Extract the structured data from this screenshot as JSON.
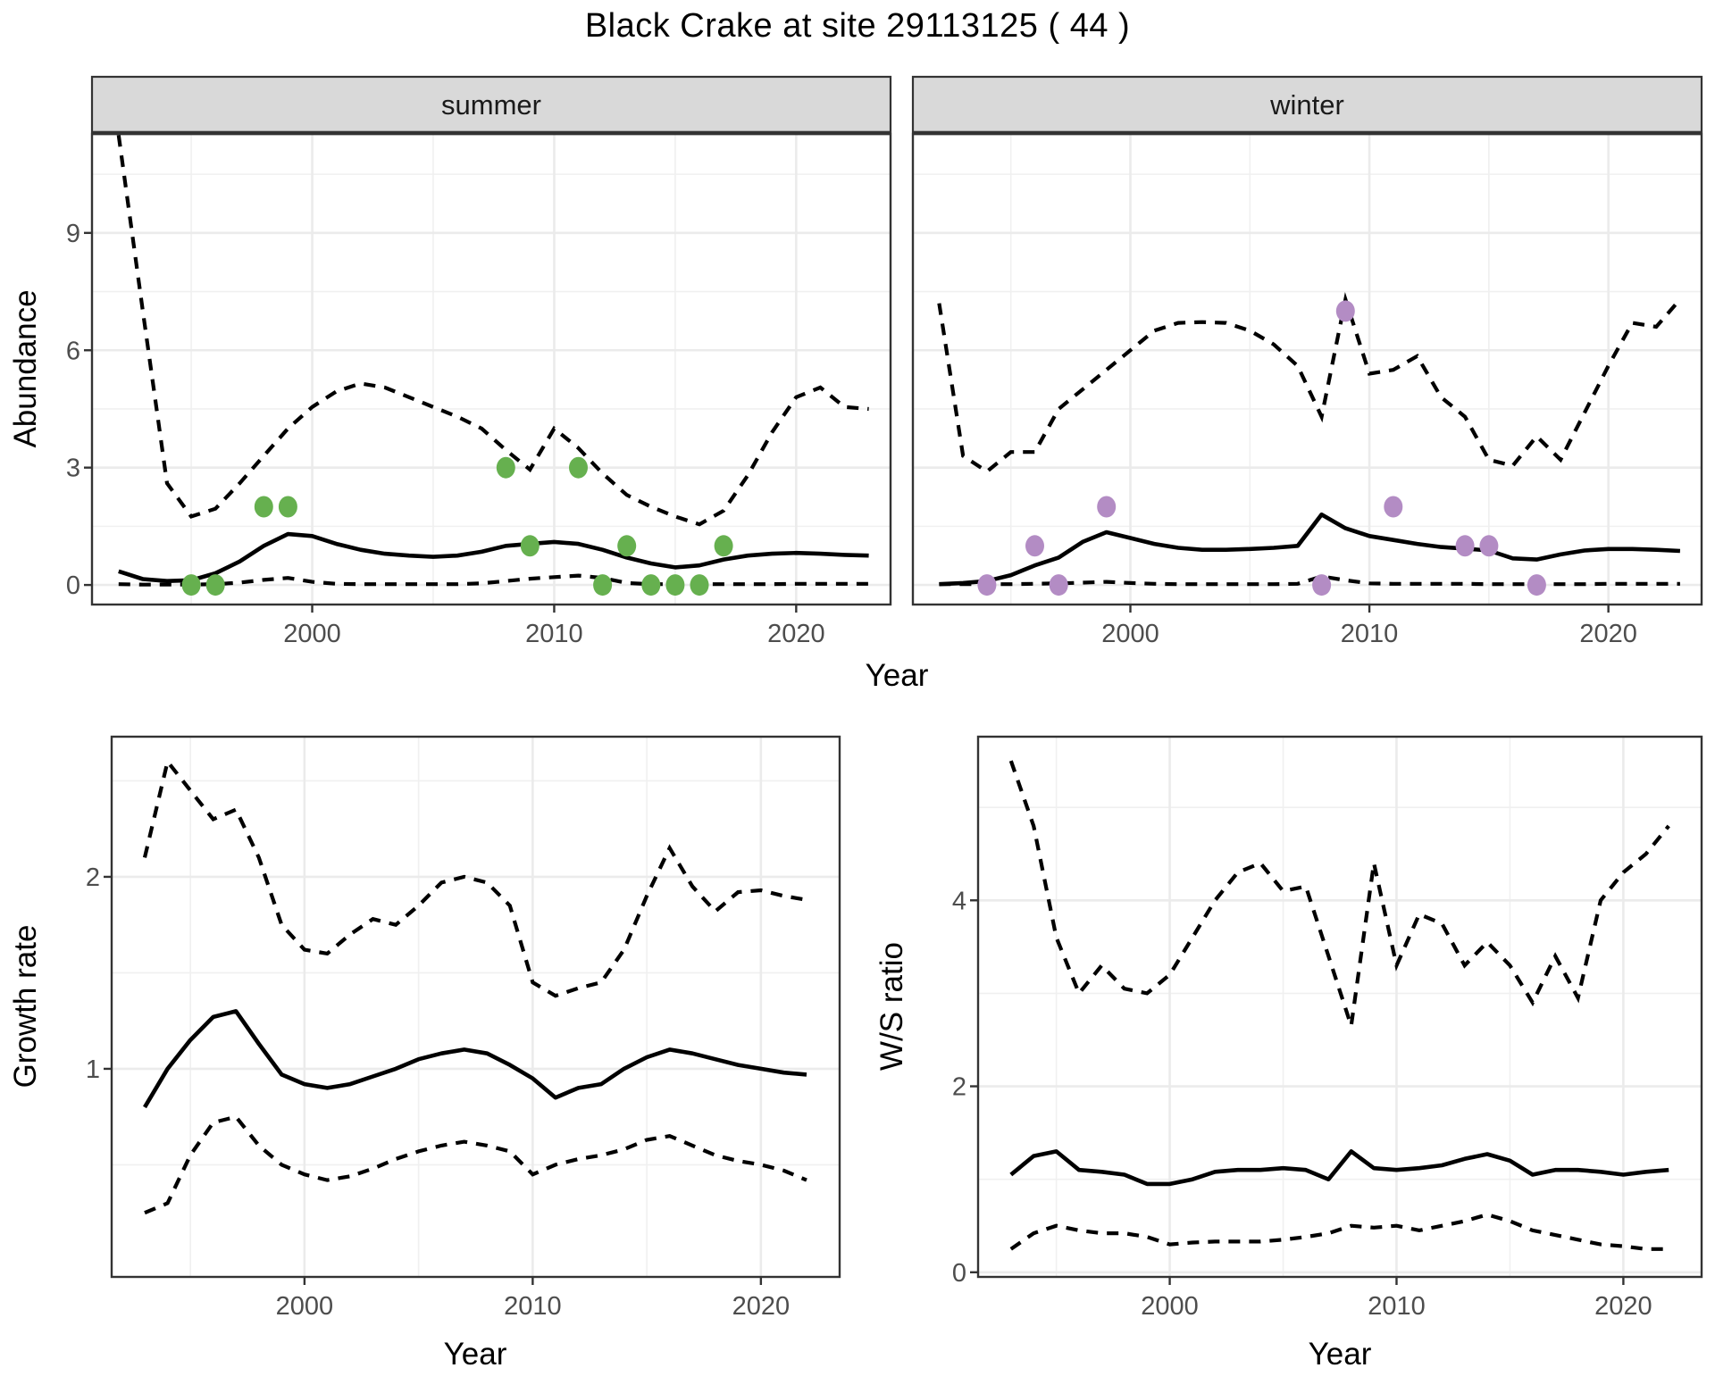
{
  "title": "Black Crake at site 29113125 ( 44 )",
  "colors": {
    "summer_point": "#66b04f",
    "winter_point": "#b38cc4",
    "line": "#000000",
    "panel_border": "#333333",
    "strip_bg": "#d9d9d9",
    "strip_text": "#1a1a1a",
    "grid_major": "#ebebeb",
    "grid_minor": "#f0f0f0",
    "tick_label": "#4d4d4d",
    "axis_title": "#000000"
  },
  "axes": {
    "top_y_title": "Abundance",
    "top_x_title": "Year",
    "bottom_left_y_title": "Growth rate",
    "bottom_left_x_title": "Year",
    "bottom_right_y_title": "W/S ratio",
    "bottom_right_x_title": "Year"
  },
  "chart_data": {
    "type": "line",
    "legend_position": "none",
    "grid": true,
    "panels": [
      {
        "key": "summer",
        "strip_label": "summer",
        "x_label": "Year",
        "y_label": "Abundance",
        "xticks": [
          2000,
          2010,
          2020
        ],
        "xminor": [
          1995,
          2005,
          2015
        ],
        "yticks": [
          0,
          3,
          6,
          9
        ],
        "yminor": [
          1.5,
          4.5,
          7.5,
          10.5
        ],
        "show_ytick_labels": true,
        "point_color_key": "summer_point",
        "x": [
          1992,
          1993,
          1994,
          1995,
          1996,
          1997,
          1998,
          1999,
          2000,
          2001,
          2002,
          2003,
          2004,
          2005,
          2006,
          2007,
          2008,
          2009,
          2010,
          2011,
          2012,
          2013,
          2014,
          2015,
          2016,
          2017,
          2018,
          2019,
          2020,
          2021,
          2022,
          2023
        ],
        "upper_dashed": [
          11.5,
          7.0,
          2.6,
          1.75,
          1.95,
          2.6,
          3.3,
          4.0,
          4.55,
          4.95,
          5.15,
          5.05,
          4.8,
          4.55,
          4.3,
          4.0,
          3.45,
          2.95,
          4.0,
          3.5,
          2.85,
          2.3,
          2.0,
          1.75,
          1.55,
          1.9,
          2.8,
          3.9,
          4.8,
          5.05,
          4.55,
          4.5
        ],
        "median_solid": [
          0.35,
          0.15,
          0.1,
          0.12,
          0.3,
          0.6,
          1.0,
          1.3,
          1.25,
          1.05,
          0.9,
          0.8,
          0.75,
          0.72,
          0.75,
          0.85,
          1.0,
          1.05,
          1.1,
          1.05,
          0.9,
          0.7,
          0.55,
          0.45,
          0.5,
          0.65,
          0.75,
          0.8,
          0.82,
          0.8,
          0.77,
          0.75
        ],
        "lower_dashed": [
          0.02,
          0.01,
          0.01,
          0.01,
          0.02,
          0.06,
          0.13,
          0.18,
          0.08,
          0.03,
          0.02,
          0.02,
          0.02,
          0.02,
          0.02,
          0.04,
          0.1,
          0.16,
          0.2,
          0.24,
          0.18,
          0.05,
          0.02,
          0.02,
          0.02,
          0.02,
          0.02,
          0.02,
          0.03,
          0.03,
          0.03,
          0.03
        ],
        "observed_points": [
          [
            1995,
            0
          ],
          [
            1996,
            0
          ],
          [
            1998,
            2
          ],
          [
            1999,
            2
          ],
          [
            2008,
            3
          ],
          [
            2009,
            1
          ],
          [
            2011,
            3
          ],
          [
            2012,
            0
          ],
          [
            2013,
            1
          ],
          [
            2014,
            0
          ],
          [
            2015,
            0
          ],
          [
            2016,
            0
          ],
          [
            2017,
            1
          ]
        ]
      },
      {
        "key": "winter",
        "strip_label": "winter",
        "x_label": "Year",
        "y_label": "Abundance",
        "xticks": [
          2000,
          2010,
          2020
        ],
        "xminor": [
          1995,
          2005,
          2015
        ],
        "yticks": [
          0,
          3,
          6,
          9
        ],
        "yminor": [
          1.5,
          4.5,
          7.5,
          10.5
        ],
        "show_ytick_labels": false,
        "point_color_key": "winter_point",
        "x": [
          1992,
          1993,
          1994,
          1995,
          1996,
          1997,
          1998,
          1999,
          2000,
          2001,
          2002,
          2003,
          2004,
          2005,
          2006,
          2007,
          2008,
          2009,
          2010,
          2011,
          2012,
          2013,
          2014,
          2015,
          2016,
          2017,
          2018,
          2019,
          2020,
          2021,
          2022,
          2023
        ],
        "upper_dashed": [
          7.2,
          3.3,
          2.9,
          3.4,
          3.4,
          4.5,
          5.0,
          5.5,
          6.0,
          6.5,
          6.7,
          6.72,
          6.7,
          6.5,
          6.15,
          5.6,
          4.3,
          7.3,
          5.4,
          5.5,
          5.85,
          4.8,
          4.3,
          3.2,
          3.05,
          3.8,
          3.2,
          4.4,
          5.6,
          6.7,
          6.6,
          7.3
        ],
        "median_solid": [
          0.02,
          0.05,
          0.1,
          0.25,
          0.5,
          0.7,
          1.1,
          1.35,
          1.2,
          1.05,
          0.95,
          0.9,
          0.9,
          0.92,
          0.95,
          1.0,
          1.8,
          1.45,
          1.25,
          1.15,
          1.05,
          0.97,
          0.93,
          0.88,
          0.68,
          0.65,
          0.78,
          0.88,
          0.92,
          0.92,
          0.9,
          0.87
        ],
        "lower_dashed": [
          0.02,
          0.02,
          0.02,
          0.02,
          0.03,
          0.04,
          0.06,
          0.08,
          0.05,
          0.03,
          0.02,
          0.02,
          0.02,
          0.02,
          0.02,
          0.03,
          0.22,
          0.12,
          0.04,
          0.03,
          0.03,
          0.03,
          0.03,
          0.02,
          0.02,
          0.02,
          0.02,
          0.02,
          0.03,
          0.03,
          0.03,
          0.03
        ],
        "observed_points": [
          [
            1994,
            0
          ],
          [
            1996,
            1
          ],
          [
            1997,
            0
          ],
          [
            1999,
            2
          ],
          [
            2008,
            0
          ],
          [
            2009,
            7
          ],
          [
            2011,
            2
          ],
          [
            2014,
            1
          ],
          [
            2015,
            1
          ],
          [
            2017,
            0
          ]
        ]
      },
      {
        "key": "growth",
        "strip_label": null,
        "x_label": "Year",
        "y_label": "Growth rate",
        "xticks": [
          2000,
          2010,
          2020
        ],
        "xminor": [
          1995,
          2005,
          2015
        ],
        "yticks": [
          1,
          2
        ],
        "yminor": [
          0.5,
          1.5,
          2.5
        ],
        "show_ytick_labels": true,
        "point_color_key": null,
        "x": [
          1993,
          1994,
          1995,
          1996,
          1997,
          1998,
          1999,
          2000,
          2001,
          2002,
          2003,
          2004,
          2005,
          2006,
          2007,
          2008,
          2009,
          2010,
          2011,
          2012,
          2013,
          2014,
          2015,
          2016,
          2017,
          2018,
          2019,
          2020,
          2021,
          2022
        ],
        "upper_dashed": [
          2.1,
          2.6,
          2.45,
          2.3,
          2.35,
          2.1,
          1.75,
          1.62,
          1.6,
          1.7,
          1.78,
          1.75,
          1.85,
          1.97,
          2.0,
          1.97,
          1.85,
          1.45,
          1.38,
          1.42,
          1.45,
          1.62,
          1.9,
          2.15,
          1.95,
          1.82,
          1.92,
          1.93,
          1.9,
          1.88
        ],
        "median_solid": [
          0.8,
          1.0,
          1.15,
          1.27,
          1.3,
          1.13,
          0.97,
          0.92,
          0.9,
          0.92,
          0.96,
          1.0,
          1.05,
          1.08,
          1.1,
          1.08,
          1.02,
          0.95,
          0.85,
          0.9,
          0.92,
          1.0,
          1.06,
          1.1,
          1.08,
          1.05,
          1.02,
          1.0,
          0.98,
          0.97
        ],
        "lower_dashed": [
          0.25,
          0.3,
          0.55,
          0.72,
          0.75,
          0.6,
          0.5,
          0.45,
          0.42,
          0.44,
          0.48,
          0.53,
          0.57,
          0.6,
          0.62,
          0.6,
          0.57,
          0.45,
          0.5,
          0.53,
          0.55,
          0.58,
          0.63,
          0.65,
          0.6,
          0.55,
          0.52,
          0.5,
          0.47,
          0.42
        ],
        "observed_points": []
      },
      {
        "key": "ratio",
        "strip_label": null,
        "x_label": "Year",
        "y_label": "W/S ratio",
        "xticks": [
          2000,
          2010,
          2020
        ],
        "xminor": [
          1995,
          2005,
          2015
        ],
        "yticks": [
          0,
          2,
          4
        ],
        "yminor": [
          1,
          3,
          5
        ],
        "show_ytick_labels": true,
        "point_color_key": null,
        "x": [
          1993,
          1994,
          1995,
          1996,
          1997,
          1998,
          1999,
          2000,
          2001,
          2002,
          2003,
          2004,
          2005,
          2006,
          2007,
          2008,
          2009,
          2010,
          2011,
          2012,
          2013,
          2014,
          2015,
          2016,
          2017,
          2018,
          2019,
          2020,
          2021,
          2022
        ],
        "upper_dashed": [
          5.5,
          4.8,
          3.6,
          3.0,
          3.3,
          3.05,
          3.0,
          3.2,
          3.6,
          4.0,
          4.3,
          4.4,
          4.1,
          4.15,
          3.4,
          2.65,
          4.4,
          3.3,
          3.85,
          3.75,
          3.3,
          3.55,
          3.3,
          2.9,
          3.4,
          2.95,
          4.0,
          4.3,
          4.5,
          4.8
        ],
        "median_solid": [
          1.05,
          1.25,
          1.3,
          1.1,
          1.08,
          1.05,
          0.95,
          0.95,
          1.0,
          1.08,
          1.1,
          1.1,
          1.12,
          1.1,
          1.0,
          1.3,
          1.12,
          1.1,
          1.12,
          1.15,
          1.22,
          1.27,
          1.2,
          1.05,
          1.1,
          1.1,
          1.08,
          1.05,
          1.08,
          1.1
        ],
        "lower_dashed": [
          0.25,
          0.42,
          0.5,
          0.45,
          0.42,
          0.42,
          0.38,
          0.3,
          0.32,
          0.33,
          0.33,
          0.33,
          0.35,
          0.38,
          0.42,
          0.5,
          0.48,
          0.5,
          0.45,
          0.5,
          0.55,
          0.62,
          0.55,
          0.45,
          0.4,
          0.35,
          0.3,
          0.28,
          0.25,
          0.25
        ],
        "observed_points": []
      }
    ]
  }
}
